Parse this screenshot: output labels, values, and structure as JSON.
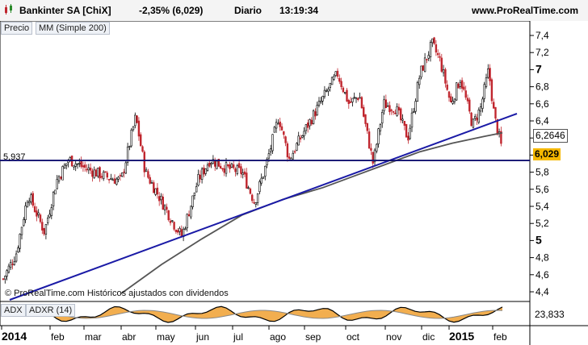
{
  "header": {
    "instrument": "Bankinter SA [ChiX]",
    "change": "-2,35% (6,029)",
    "period": "Diario",
    "time": "13:19:34",
    "site": "www.ProRealTime.com"
  },
  "panels": {
    "price_tag": "Precio",
    "ma_tag": "MM (Simple 200)",
    "adx_tag": "ADX",
    "adxr_tag": "ADXR (14)",
    "footer_note": "© ProRealTime.com Históricos ajustados con dividendos"
  },
  "markers": {
    "support_label": "5,937",
    "ma_value": "6,2646",
    "last_price": "6,029",
    "adx_value": "23,833"
  },
  "colors": {
    "up_candle": "#000000",
    "down_candle": "#c0262e",
    "trend_line": "#1a1aa6",
    "support_line": "#101070",
    "ma_line": "#555555",
    "last_price_bg": "#f5b800",
    "adx_fill": "#f0a030"
  },
  "chart_data": {
    "type": "line",
    "title": "Bankinter SA [ChiX]",
    "xlabel": "",
    "ylabel": "",
    "y_axis_ticks": [
      "7,4",
      "7,2",
      "7",
      "6,8",
      "6,6",
      "6,4",
      "6,2",
      "6",
      "5,8",
      "5,6",
      "5,4",
      "5,2",
      "5",
      "4,8",
      "4,6",
      "4,4"
    ],
    "y_axis_bold": [
      "7",
      "5"
    ],
    "ylim": [
      4.35,
      7.5
    ],
    "x_axis_labels": [
      "2014",
      "feb",
      "mar",
      "abr",
      "may",
      "jun",
      "jul",
      "ago",
      "sep",
      "oct",
      "nov",
      "dic",
      "2015",
      "feb"
    ],
    "x_axis_bold": [
      "2014",
      "2015"
    ],
    "grid": false,
    "series": [
      {
        "name": "Precio",
        "values_monthly_close": [
          4.5,
          5.82,
          5.76,
          5.55,
          5.08,
          5.93,
          5.75,
          5.9,
          6.45,
          6.7,
          6.02,
          7.15,
          6.6,
          6.03
        ]
      },
      {
        "name": "MM (Simple 200)",
        "values_monthly": [
          null,
          null,
          null,
          4.4,
          4.75,
          5.05,
          5.3,
          5.48,
          5.62,
          5.78,
          5.95,
          6.08,
          6.2,
          6.26
        ]
      }
    ],
    "support_level": 5.937,
    "last_close": 6.029,
    "ma_last": 6.2646,
    "indicator": {
      "name": "ADX / ADXR (14)",
      "last_value": 23.833
    }
  }
}
